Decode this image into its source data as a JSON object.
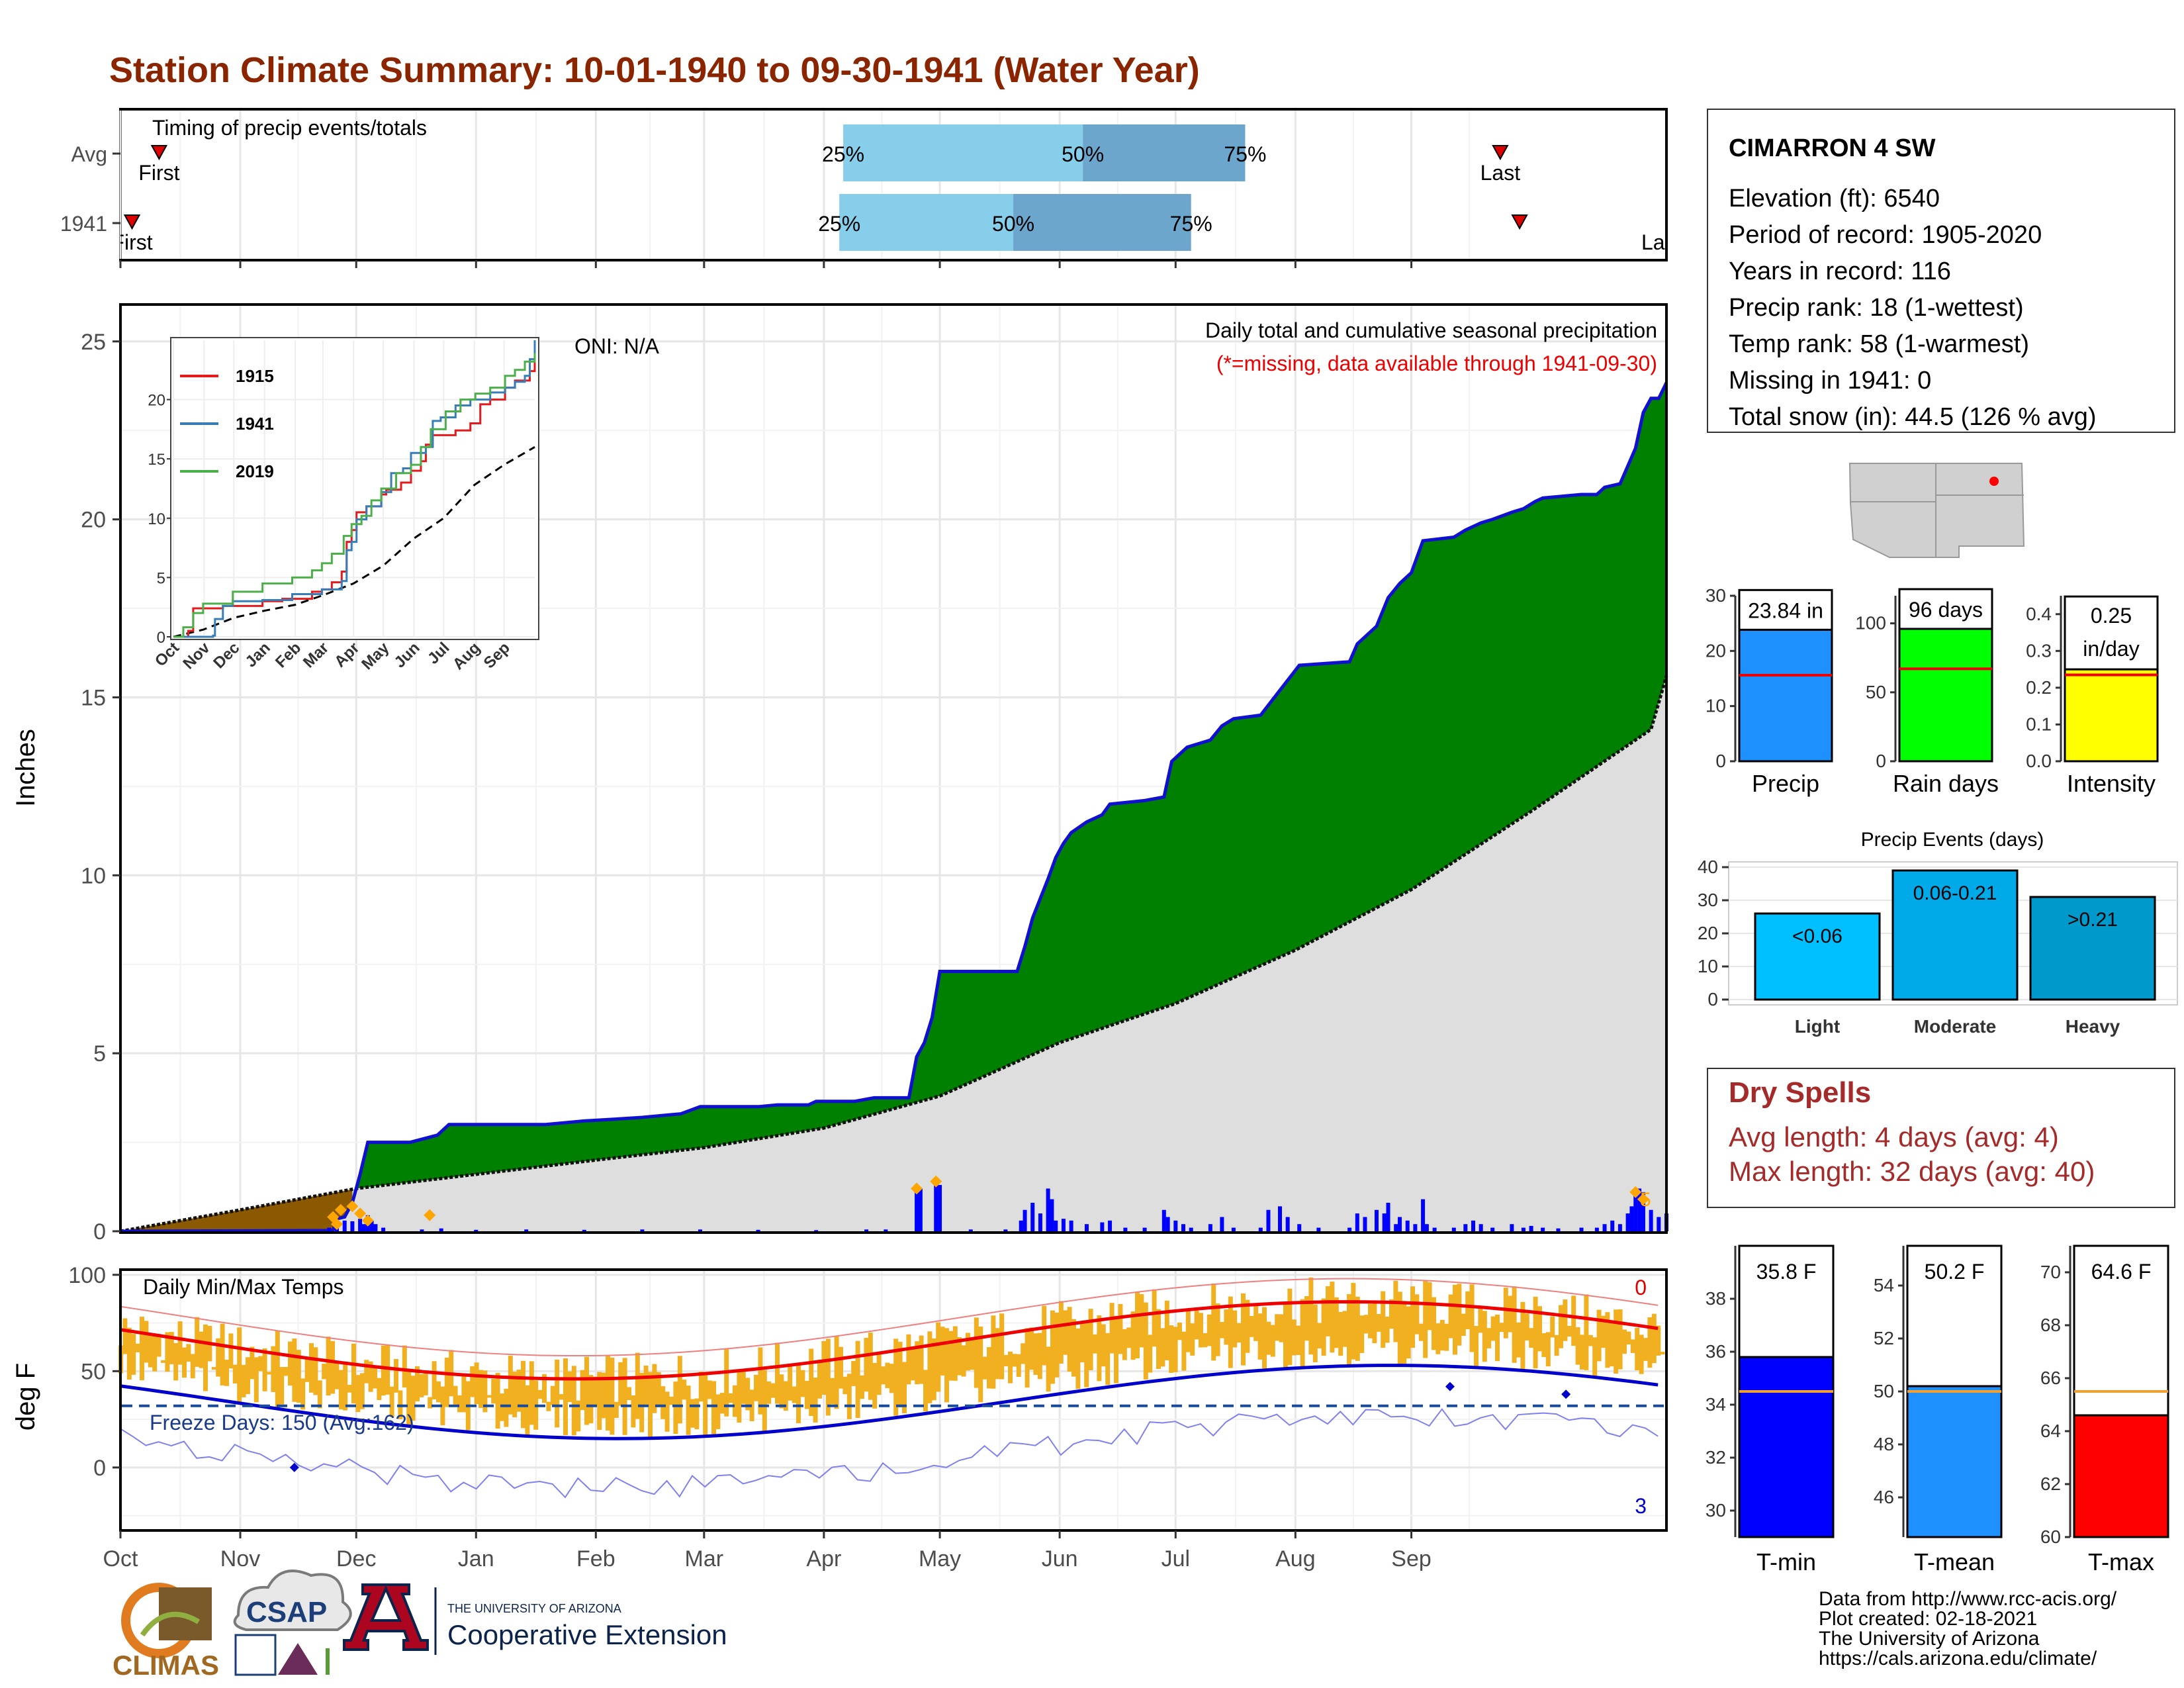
{
  "title": "Station Climate Summary: 10-01-1940 to 09-30-1941 (Water Year)",
  "timing": {
    "label": "Timing of precip events/totals",
    "rows": [
      {
        "name": "Avg",
        "first": "First",
        "last": "Last",
        "first_day": 10,
        "last_day": 357,
        "q25": 187,
        "q50": 249,
        "q75": 291
      },
      {
        "name": "1941",
        "first": "First",
        "last": "Last",
        "first_day": 3,
        "last_day": 362,
        "q25": 186,
        "q50": 231,
        "q75": 277
      }
    ],
    "q_labels": [
      "25%",
      "50%",
      "75%"
    ]
  },
  "months": [
    "Oct",
    "Nov",
    "Dec",
    "Jan",
    "Feb",
    "Mar",
    "Apr",
    "May",
    "Jun",
    "Jul",
    "Aug",
    "Sep"
  ],
  "precip_chart": {
    "type": "area",
    "ylabel": "Inches",
    "yticks": [
      "0",
      "5",
      "10",
      "15",
      "20",
      "25"
    ],
    "ylim": [
      0,
      26
    ],
    "note_title": "Daily total and cumulative seasonal precipitation",
    "note_missing": "(*=missing, data available through 1941-09-30)",
    "oni": "ONI: N/A",
    "colors": {
      "above": "#008000",
      "below": "#8B5A00",
      "avg_fill": "#dedede",
      "obs_line": "#1010d0",
      "daily": "#0000ff",
      "snow": "#FFA500"
    },
    "observed": [
      [
        0,
        0
      ],
      [
        55,
        0.02
      ],
      [
        56,
        0.35
      ],
      [
        58,
        0.4
      ],
      [
        60,
        0.8
      ],
      [
        62,
        1.6
      ],
      [
        64,
        2.5
      ],
      [
        75,
        2.5
      ],
      [
        82,
        2.7
      ],
      [
        85,
        3.0
      ],
      [
        95,
        3.0
      ],
      [
        110,
        3.0
      ],
      [
        120,
        3.1
      ],
      [
        128,
        3.15
      ],
      [
        135,
        3.2
      ],
      [
        145,
        3.3
      ],
      [
        150,
        3.5
      ],
      [
        165,
        3.5
      ],
      [
        170,
        3.55
      ],
      [
        178,
        3.55
      ],
      [
        180,
        3.65
      ],
      [
        190,
        3.65
      ],
      [
        195,
        3.75
      ],
      [
        204,
        3.75
      ],
      [
        206,
        4.9
      ],
      [
        208,
        5.3
      ],
      [
        210,
        6.0
      ],
      [
        212,
        7.3
      ],
      [
        220,
        7.3
      ],
      [
        232,
        7.3
      ],
      [
        234,
        8.0
      ],
      [
        236,
        8.8
      ],
      [
        240,
        9.9
      ],
      [
        242,
        10.5
      ],
      [
        244,
        10.9
      ],
      [
        246,
        11.2
      ],
      [
        250,
        11.5
      ],
      [
        254,
        11.7
      ],
      [
        256,
        12.0
      ],
      [
        265,
        12.1
      ],
      [
        270,
        12.2
      ],
      [
        272,
        13.2
      ],
      [
        276,
        13.6
      ],
      [
        282,
        13.8
      ],
      [
        285,
        14.2
      ],
      [
        288,
        14.4
      ],
      [
        295,
        14.5
      ],
      [
        300,
        15.2
      ],
      [
        305,
        15.9
      ],
      [
        318,
        16.0
      ],
      [
        320,
        16.5
      ],
      [
        325,
        17.0
      ],
      [
        328,
        17.8
      ],
      [
        331,
        18.2
      ],
      [
        334,
        18.5
      ],
      [
        337,
        19.4
      ],
      [
        345,
        19.5
      ],
      [
        348,
        19.7
      ],
      [
        352,
        19.9
      ],
      [
        355,
        20.0
      ],
      [
        360,
        20.2
      ],
      [
        363,
        20.3
      ],
      [
        366,
        20.5
      ],
      [
        368,
        20.6
      ],
      [
        378,
        20.7
      ],
      [
        382,
        20.7
      ],
      [
        384,
        20.9
      ],
      [
        388,
        21.0
      ],
      [
        390,
        21.5
      ],
      [
        392,
        22.0
      ],
      [
        394,
        23.0
      ],
      [
        396,
        23.4
      ],
      [
        398,
        23.4
      ],
      [
        400,
        23.84
      ]
    ],
    "average": [
      [
        0,
        0
      ],
      [
        31,
        0.6
      ],
      [
        61,
        1.2
      ],
      [
        92,
        1.6
      ],
      [
        123,
        2.0
      ],
      [
        151,
        2.35
      ],
      [
        182,
        2.9
      ],
      [
        212,
        3.8
      ],
      [
        243,
        5.3
      ],
      [
        273,
        6.4
      ],
      [
        304,
        7.9
      ],
      [
        334,
        9.6
      ],
      [
        365,
        11.8
      ],
      [
        396,
        14.1
      ],
      [
        400,
        15.6
      ]
    ],
    "daily": [
      [
        54,
        0.1
      ],
      [
        56,
        0.15
      ],
      [
        58,
        0.3
      ],
      [
        60,
        0.28
      ],
      [
        62,
        0.35
      ],
      [
        63,
        0.2
      ],
      [
        64,
        0.45
      ],
      [
        65,
        0.3
      ],
      [
        66,
        0.2
      ],
      [
        68,
        0.1
      ],
      [
        78,
        0.05
      ],
      [
        83,
        0.08
      ],
      [
        92,
        0.04
      ],
      [
        105,
        0.05
      ],
      [
        120,
        0.04
      ],
      [
        135,
        0.05
      ],
      [
        150,
        0.05
      ],
      [
        165,
        0.04
      ],
      [
        180,
        0.03
      ],
      [
        193,
        0.05
      ],
      [
        198,
        0.05
      ],
      [
        206,
        1.3
      ],
      [
        207,
        1.2
      ],
      [
        211,
        1.4
      ],
      [
        212,
        1.3
      ],
      [
        220,
        0.05
      ],
      [
        229,
        0.05
      ],
      [
        233,
        0.3
      ],
      [
        234,
        0.6
      ],
      [
        236,
        0.8
      ],
      [
        238,
        0.5
      ],
      [
        240,
        1.2
      ],
      [
        241,
        0.9
      ],
      [
        242,
        0.3
      ],
      [
        244,
        0.35
      ],
      [
        246,
        0.3
      ],
      [
        250,
        0.2
      ],
      [
        254,
        0.25
      ],
      [
        256,
        0.3
      ],
      [
        260,
        0.1
      ],
      [
        265,
        0.1
      ],
      [
        270,
        0.6
      ],
      [
        271,
        0.4
      ],
      [
        273,
        0.3
      ],
      [
        275,
        0.2
      ],
      [
        277,
        0.1
      ],
      [
        282,
        0.2
      ],
      [
        285,
        0.4
      ],
      [
        288,
        0.1
      ],
      [
        295,
        0.1
      ],
      [
        297,
        0.6
      ],
      [
        300,
        0.7
      ],
      [
        302,
        0.4
      ],
      [
        305,
        0.2
      ],
      [
        310,
        0.1
      ],
      [
        318,
        0.1
      ],
      [
        320,
        0.5
      ],
      [
        322,
        0.4
      ],
      [
        325,
        0.6
      ],
      [
        327,
        0.5
      ],
      [
        328,
        0.8
      ],
      [
        330,
        0.2
      ],
      [
        331,
        0.4
      ],
      [
        333,
        0.3
      ],
      [
        335,
        0.2
      ],
      [
        337,
        0.9
      ],
      [
        338,
        0.2
      ],
      [
        340,
        0.1
      ],
      [
        345,
        0.1
      ],
      [
        348,
        0.2
      ],
      [
        350,
        0.3
      ],
      [
        352,
        0.2
      ],
      [
        355,
        0.1
      ],
      [
        360,
        0.2
      ],
      [
        363,
        0.1
      ],
      [
        365,
        0.15
      ],
      [
        368,
        0.1
      ],
      [
        372,
        0.08
      ],
      [
        378,
        0.1
      ],
      [
        382,
        0.1
      ],
      [
        384,
        0.2
      ],
      [
        386,
        0.3
      ],
      [
        388,
        0.2
      ],
      [
        390,
        0.5
      ],
      [
        391,
        0.7
      ],
      [
        392,
        1.0
      ],
      [
        393,
        1.2
      ],
      [
        394,
        1.1
      ],
      [
        396,
        0.6
      ],
      [
        398,
        0.4
      ],
      [
        400,
        0.5
      ]
    ],
    "snow": [
      [
        55,
        0.4
      ],
      [
        56,
        0.2
      ],
      [
        57,
        0.6
      ],
      [
        60,
        0.7
      ],
      [
        62,
        0.5
      ],
      [
        64,
        0.3
      ],
      [
        80,
        0.45
      ],
      [
        206,
        1.2
      ],
      [
        211,
        1.4
      ],
      [
        392,
        1.1
      ],
      [
        394,
        0.9
      ]
    ],
    "snow_label": "5",
    "inset": {
      "yticks": [
        "0",
        "5",
        "10",
        "15",
        "20"
      ],
      "ylim": [
        0,
        25
      ],
      "months": [
        "Oct",
        "Nov",
        "Dec",
        "Jan",
        "Feb",
        "Mar",
        "Apr",
        "May",
        "Jun",
        "Jul",
        "Aug",
        "Sep"
      ],
      "series": [
        {
          "name": "1915",
          "color": "#e41a1c",
          "points": [
            [
              0,
              0
            ],
            [
              15,
              0.5
            ],
            [
              20,
              2.4
            ],
            [
              50,
              2.6
            ],
            [
              60,
              2.6
            ],
            [
              90,
              3.0
            ],
            [
              110,
              3.2
            ],
            [
              140,
              3.8
            ],
            [
              150,
              4.0
            ],
            [
              160,
              4.6
            ],
            [
              170,
              5.5
            ],
            [
              175,
              8.0
            ],
            [
              180,
              9.0
            ],
            [
              185,
              10.5
            ],
            [
              195,
              11.0
            ],
            [
              210,
              12.0
            ],
            [
              215,
              12.4
            ],
            [
              230,
              13.0
            ],
            [
              240,
              14.0
            ],
            [
              250,
              14.8
            ],
            [
              255,
              16.2
            ],
            [
              262,
              17.0
            ],
            [
              270,
              17.0
            ],
            [
              285,
              17.4
            ],
            [
              300,
              18.0
            ],
            [
              310,
              19.6
            ],
            [
              320,
              20.0
            ],
            [
              335,
              21.0
            ],
            [
              345,
              21.6
            ],
            [
              360,
              22.4
            ],
            [
              365,
              23.6
            ]
          ]
        },
        {
          "name": "1941",
          "color": "#377eb8",
          "points": [
            [
              0,
              0
            ],
            [
              40,
              0.1
            ],
            [
              42,
              1.5
            ],
            [
              50,
              2.6
            ],
            [
              60,
              3.0
            ],
            [
              90,
              3.1
            ],
            [
              120,
              3.6
            ],
            [
              150,
              4.0
            ],
            [
              170,
              4.7
            ],
            [
              175,
              7.3
            ],
            [
              180,
              8.0
            ],
            [
              185,
              9.9
            ],
            [
              195,
              11.0
            ],
            [
              210,
              12.2
            ],
            [
              220,
              13.8
            ],
            [
              232,
              14.2
            ],
            [
              240,
              15.5
            ],
            [
              255,
              16.0
            ],
            [
              262,
              18.2
            ],
            [
              270,
              18.5
            ],
            [
              285,
              19.5
            ],
            [
              300,
              20.0
            ],
            [
              320,
              20.6
            ],
            [
              335,
              21.0
            ],
            [
              345,
              21.5
            ],
            [
              355,
              22.0
            ],
            [
              360,
              23.4
            ],
            [
              365,
              25.0
            ]
          ]
        },
        {
          "name": "2019",
          "color": "#4daf4a",
          "points": [
            [
              0,
              0
            ],
            [
              10,
              0.8
            ],
            [
              20,
              2.0
            ],
            [
              30,
              2.8
            ],
            [
              60,
              3.8
            ],
            [
              90,
              4.5
            ],
            [
              120,
              5.0
            ],
            [
              140,
              5.6
            ],
            [
              150,
              6.2
            ],
            [
              160,
              7.0
            ],
            [
              172,
              8.5
            ],
            [
              180,
              9.5
            ],
            [
              190,
              10.2
            ],
            [
              200,
              11.5
            ],
            [
              210,
              12.5
            ],
            [
              225,
              13.8
            ],
            [
              240,
              14.5
            ],
            [
              250,
              16.0
            ],
            [
              260,
              17.5
            ],
            [
              275,
              19.0
            ],
            [
              290,
              20.0
            ],
            [
              305,
              20.5
            ],
            [
              320,
              21.0
            ],
            [
              335,
              22.0
            ],
            [
              345,
              22.5
            ],
            [
              355,
              23.2
            ],
            [
              365,
              23.9
            ]
          ]
        }
      ],
      "average": [
        [
          0,
          0
        ],
        [
          30,
          0.6
        ],
        [
          61,
          1.6
        ],
        [
          92,
          2.2
        ],
        [
          123,
          2.7
        ],
        [
          151,
          3.5
        ],
        [
          182,
          4.5
        ],
        [
          212,
          6.0
        ],
        [
          243,
          8.3
        ],
        [
          273,
          10.0
        ],
        [
          304,
          12.8
        ],
        [
          334,
          14.5
        ],
        [
          365,
          16.0
        ]
      ]
    }
  },
  "station": {
    "name": "CIMARRON 4 SW",
    "lines": [
      "Elevation (ft): 6540",
      "Period of record: 1905-2020",
      "Years in record: 116",
      "Precip rank: 18 (1-wettest)",
      "Temp rank: 58 (1-warmest)",
      "Missing in 1941: 0",
      "Total snow (in): 44.5 (126 % avg)"
    ]
  },
  "summary_bars": [
    {
      "name": "Precip",
      "label": "23.84 in",
      "value": 23.84,
      "avg": 15.6,
      "yticks": [
        0,
        10,
        20,
        30
      ],
      "ylim": [
        0,
        30
      ],
      "color": "#1E90FF"
    },
    {
      "name": "Rain days",
      "label": "96 days",
      "value": 96,
      "avg": 67,
      "yticks": [
        0,
        50,
        100
      ],
      "ylim": [
        0,
        120
      ],
      "color": "#00FF00"
    },
    {
      "name": "Intensity",
      "label": "0.25 in/day",
      "value": 0.25,
      "avg": 0.235,
      "yticks": [
        0.0,
        0.1,
        0.2,
        0.3,
        0.4
      ],
      "ylim": [
        0,
        0.45
      ],
      "color": "#FFFF00"
    }
  ],
  "precip_events": {
    "title": "Precip Events (days)",
    "yticks": [
      0,
      10,
      20,
      30,
      40
    ],
    "ylim": [
      0,
      40
    ],
    "bars": [
      {
        "name": "Light",
        "label": "<0.06",
        "value": 26,
        "color": "#00BFFF"
      },
      {
        "name": "Moderate",
        "label": "0.06-0.21",
        "value": 39,
        "color": "#00AAE8"
      },
      {
        "name": "Heavy",
        "label": ">0.21",
        "value": 31,
        "color": "#0099CC"
      }
    ]
  },
  "dry_spells": {
    "title": "Dry Spells",
    "avg": "Avg length: 4 days (avg: 4)",
    "max": "Max length: 32 days (avg: 40)"
  },
  "temp_chart": {
    "title": "Daily Min/Max Temps",
    "ylabel": "deg F",
    "yticks": [
      "0",
      "50",
      "100"
    ],
    "ylim": [
      -32,
      102
    ],
    "freeze": "Freeze Days: 150 (Avg:162)",
    "count_top": "0",
    "count_bottom": "3",
    "freeze_line": 32
  },
  "temp_bars": [
    {
      "name": "T-min",
      "label": "35.8 F",
      "value": 35.8,
      "avg": 34.5,
      "yticks": [
        30,
        32,
        34,
        36,
        38
      ],
      "ylim": [
        29,
        40
      ],
      "color": "#0000FF"
    },
    {
      "name": "T-mean",
      "label": "50.2 F",
      "value": 50.2,
      "avg": 50.0,
      "yticks": [
        46,
        48,
        50,
        52,
        54
      ],
      "ylim": [
        44.5,
        55.5
      ],
      "color": "#1E90FF"
    },
    {
      "name": "T-max",
      "label": "64.6 F",
      "value": 64.6,
      "avg": 65.5,
      "yticks": [
        60,
        62,
        64,
        66,
        68,
        70
      ],
      "ylim": [
        60,
        71
      ],
      "color": "#FF0000"
    }
  ],
  "footer": {
    "lines": [
      "Data from http://www.rcc-acis.org/",
      "Plot created: 02-18-2021",
      "The University of Arizona",
      "https://cals.arizona.edu/climate/"
    ],
    "climas": "CLIMAS",
    "csap": "CSAP",
    "ua_small": "THE UNIVERSITY OF ARIZONA",
    "ua_big": "Cooperative Extension"
  }
}
